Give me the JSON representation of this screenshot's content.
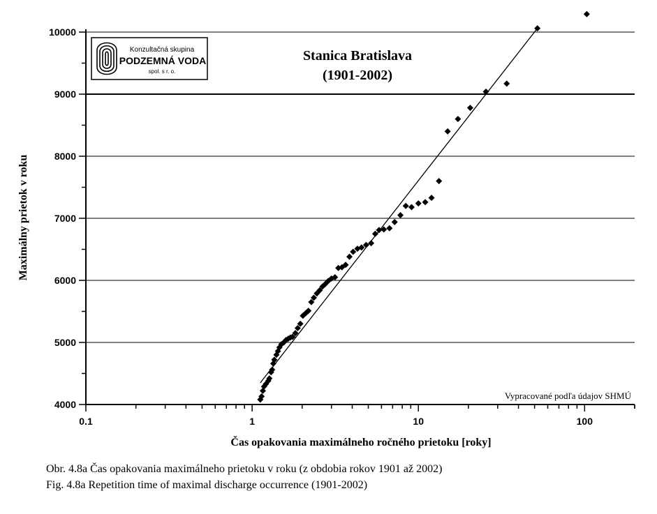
{
  "chart_data": {
    "type": "scatter",
    "title": "Stanica Bratislava",
    "subtitle": "(1901-2002)",
    "xlabel": "Čas opakovania maximálneho ročného prietoku [roky]",
    "ylabel": "Maximálny prietok v roku",
    "xscale": "log",
    "xlim": [
      0.1,
      200
    ],
    "ylim": [
      4000,
      10000
    ],
    "xticks": [
      0.1,
      1,
      10,
      100
    ],
    "xtick_labels": [
      "0.1",
      "1",
      "10",
      "100"
    ],
    "yticks": [
      4000,
      5000,
      6000,
      7000,
      8000,
      9000,
      10000
    ],
    "ytick_labels": [
      "4000",
      "5000",
      "6000",
      "7000",
      "8000",
      "9000",
      "10000"
    ],
    "grid": "horizontal",
    "marker": "diamond",
    "trend_line": {
      "x": [
        1.12,
        52
      ],
      "y": [
        4350,
        10060
      ]
    },
    "points": [
      [
        1.12,
        4080
      ],
      [
        1.14,
        4130
      ],
      [
        1.16,
        4220
      ],
      [
        1.18,
        4290
      ],
      [
        1.21,
        4330
      ],
      [
        1.25,
        4380
      ],
      [
        1.27,
        4420
      ],
      [
        1.3,
        4520
      ],
      [
        1.32,
        4560
      ],
      [
        1.34,
        4660
      ],
      [
        1.36,
        4720
      ],
      [
        1.4,
        4800
      ],
      [
        1.43,
        4860
      ],
      [
        1.46,
        4920
      ],
      [
        1.5,
        4970
      ],
      [
        1.55,
        5000
      ],
      [
        1.6,
        5040
      ],
      [
        1.65,
        5060
      ],
      [
        1.7,
        5080
      ],
      [
        1.75,
        5090
      ],
      [
        1.82,
        5150
      ],
      [
        1.88,
        5230
      ],
      [
        1.95,
        5300
      ],
      [
        2.02,
        5430
      ],
      [
        2.1,
        5470
      ],
      [
        2.18,
        5510
      ],
      [
        2.27,
        5650
      ],
      [
        2.35,
        5720
      ],
      [
        2.45,
        5790
      ],
      [
        2.55,
        5840
      ],
      [
        2.65,
        5900
      ],
      [
        2.75,
        5940
      ],
      [
        2.87,
        5990
      ],
      [
        3.0,
        6030
      ],
      [
        3.15,
        6050
      ],
      [
        3.3,
        6200
      ],
      [
        3.47,
        6210
      ],
      [
        3.65,
        6250
      ],
      [
        3.85,
        6380
      ],
      [
        4.05,
        6460
      ],
      [
        4.3,
        6510
      ],
      [
        4.55,
        6530
      ],
      [
        4.85,
        6570
      ],
      [
        5.2,
        6600
      ],
      [
        5.5,
        6750
      ],
      [
        5.8,
        6810
      ],
      [
        6.2,
        6820
      ],
      [
        6.7,
        6840
      ],
      [
        7.2,
        6940
      ],
      [
        7.8,
        7050
      ],
      [
        8.4,
        7200
      ],
      [
        9.1,
        7180
      ],
      [
        10.0,
        7240
      ],
      [
        11.0,
        7260
      ],
      [
        12.0,
        7330
      ],
      [
        13.3,
        7600
      ],
      [
        15.0,
        8400
      ],
      [
        17.3,
        8600
      ],
      [
        20.5,
        8780
      ],
      [
        25.5,
        9040
      ],
      [
        34.0,
        9170
      ],
      [
        52.0,
        10060
      ],
      [
        103.0,
        10290
      ]
    ],
    "annotation": "Vypracované podľa údajov SHMÚ"
  },
  "logo": {
    "line1": "Konzultačná skupina",
    "line2": "PODZEMNÁ VODA",
    "line3": "spol. s r. o."
  },
  "caption": {
    "line1": "Obr. 4.8a  Čas opakovania maximálneho prietoku v roku (z obdobia rokov 1901 až 2002)",
    "line2": "Fig. 4.8a  Repetition time of maximal discharge occurrence (1901-2002)"
  }
}
